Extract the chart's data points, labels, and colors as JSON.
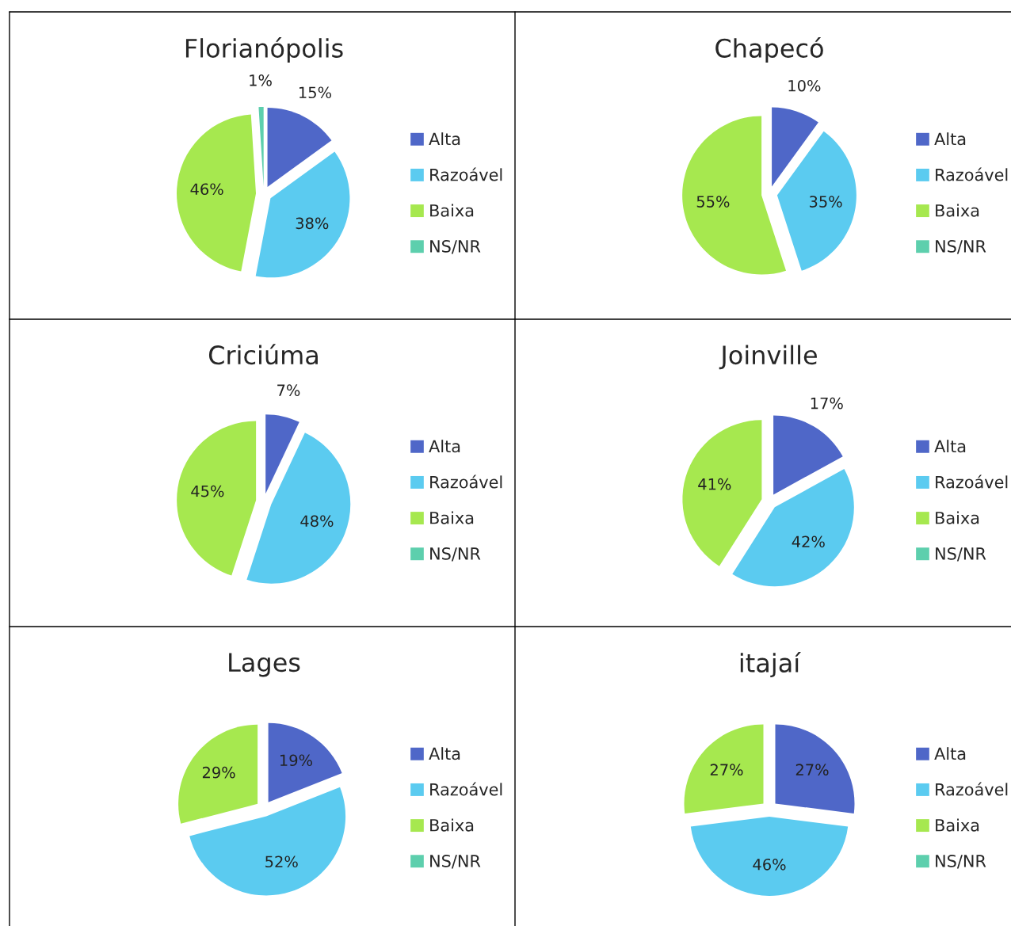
{
  "chart_data": [
    {
      "type": "pie",
      "title": "Florianópolis",
      "categories": [
        "Alta",
        "Razoável",
        "Baixa",
        "NS/NR"
      ],
      "values": [
        15,
        38,
        46,
        1
      ],
      "colors": [
        "#4f67c8",
        "#5bcbf0",
        "#a6e84f",
        "#5dcfad"
      ],
      "value_labels": [
        "15%",
        "38%",
        "46%",
        "1%"
      ],
      "legend": "right"
    },
    {
      "type": "pie",
      "title": "Chapecó",
      "categories": [
        "Alta",
        "Razoável",
        "Baixa",
        "NS/NR"
      ],
      "values": [
        10,
        35,
        55,
        0
      ],
      "colors": [
        "#4f67c8",
        "#5bcbf0",
        "#a6e84f",
        "#5dcfad"
      ],
      "value_labels": [
        "10%",
        "35%",
        "55%",
        null
      ],
      "legend": "right"
    },
    {
      "type": "pie",
      "title": "Criciúma",
      "categories": [
        "Alta",
        "Razoável",
        "Baixa",
        "NS/NR"
      ],
      "values": [
        7,
        48,
        45,
        0
      ],
      "colors": [
        "#4f67c8",
        "#5bcbf0",
        "#a6e84f",
        "#5dcfad"
      ],
      "value_labels": [
        "7%",
        "48%",
        "45%",
        null
      ],
      "legend": "right"
    },
    {
      "type": "pie",
      "title": "Joinville",
      "categories": [
        "Alta",
        "Razoável",
        "Baixa",
        "NS/NR"
      ],
      "values": [
        17,
        42,
        41,
        0
      ],
      "colors": [
        "#4f67c8",
        "#5bcbf0",
        "#a6e84f",
        "#5dcfad"
      ],
      "value_labels": [
        "17%",
        "42%",
        "41%",
        null
      ],
      "legend": "right"
    },
    {
      "type": "pie",
      "title": "Lages",
      "categories": [
        "Alta",
        "Razoável",
        "Baixa",
        "NS/NR"
      ],
      "values": [
        19,
        52,
        29,
        0
      ],
      "colors": [
        "#4f67c8",
        "#5bcbf0",
        "#a6e84f",
        "#5dcfad"
      ],
      "value_labels": [
        "19%",
        "52%",
        "29%",
        null
      ],
      "legend": "right"
    },
    {
      "type": "pie",
      "title": "itajaí",
      "categories": [
        "Alta",
        "Razoável",
        "Baixa",
        "NS/NR"
      ],
      "values": [
        27,
        46,
        27,
        0
      ],
      "colors": [
        "#4f67c8",
        "#5bcbf0",
        "#a6e84f",
        "#5dcfad"
      ],
      "value_labels": [
        "27%",
        "46%",
        "27%",
        null
      ],
      "legend": "right"
    }
  ]
}
